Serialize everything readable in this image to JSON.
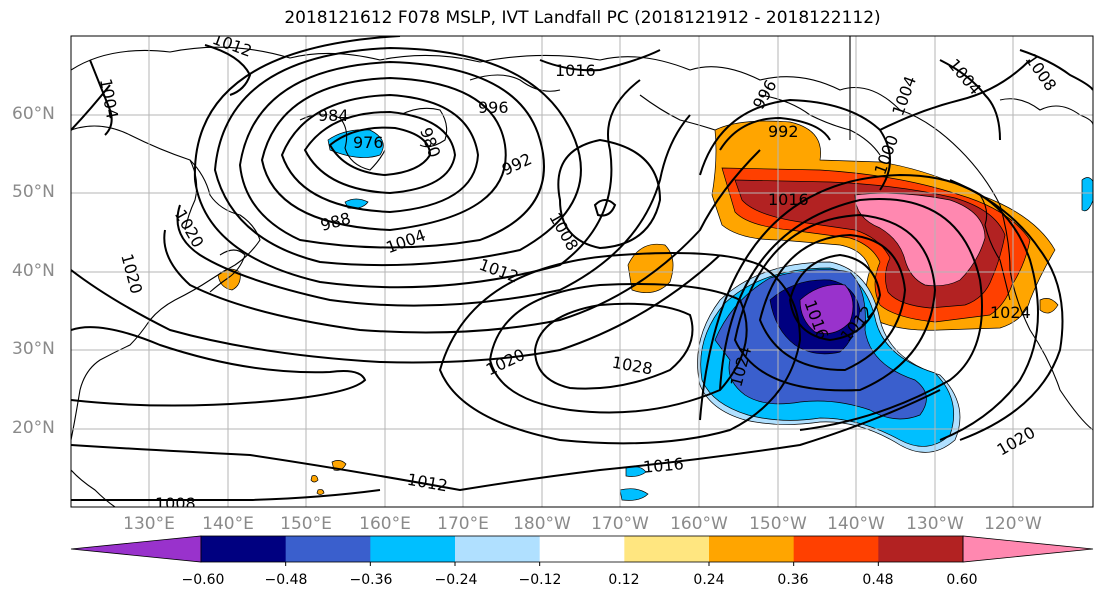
{
  "title": "2018121612 F078 MSLP, IVT Landfall PC (2018121912 - 2018122112)",
  "map": {
    "lat_labels": [
      "60°N",
      "50°N",
      "40°N",
      "30°N",
      "20°N"
    ],
    "lon_labels": [
      "130°E",
      "140°E",
      "150°E",
      "160°E",
      "170°E",
      "180°W",
      "170°W",
      "160°W",
      "150°W",
      "140°W",
      "130°W",
      "120°W"
    ],
    "isobar_labels": [
      "1004",
      "1012",
      "984",
      "976",
      "980",
      "996",
      "992",
      "988",
      "1020",
      "1004",
      "1012",
      "1008",
      "1020",
      "1028",
      "1016",
      "1012",
      "1008",
      "1016",
      "996",
      "992",
      "1016",
      "1000",
      "1004",
      "1008",
      "1024",
      "1024",
      "1012",
      "1016",
      "1020",
      "1020",
      "1004"
    ]
  },
  "colorbar": {
    "labels": [
      "−0.60",
      "−0.48",
      "−0.36",
      "−0.24",
      "−0.12",
      "0.12",
      "0.24",
      "0.36",
      "0.48",
      "0.60"
    ],
    "colors": [
      "#9932cc",
      "#000080",
      "#3a5fcd",
      "#00bfff",
      "#b0e0ff",
      "#ffffff",
      "#ffe680",
      "#ffa500",
      "#ff4000",
      "#b22222",
      "#ff88b0"
    ]
  },
  "colors": {
    "pos_024": "#ffa500",
    "pos_036": "#ff4000",
    "pos_048": "#b22222",
    "pos_060": "#ff88b0",
    "neg_024": "#00bfff",
    "neg_036": "#3a5fcd",
    "neg_048": "#000080",
    "neg_060": "#9932cc"
  }
}
